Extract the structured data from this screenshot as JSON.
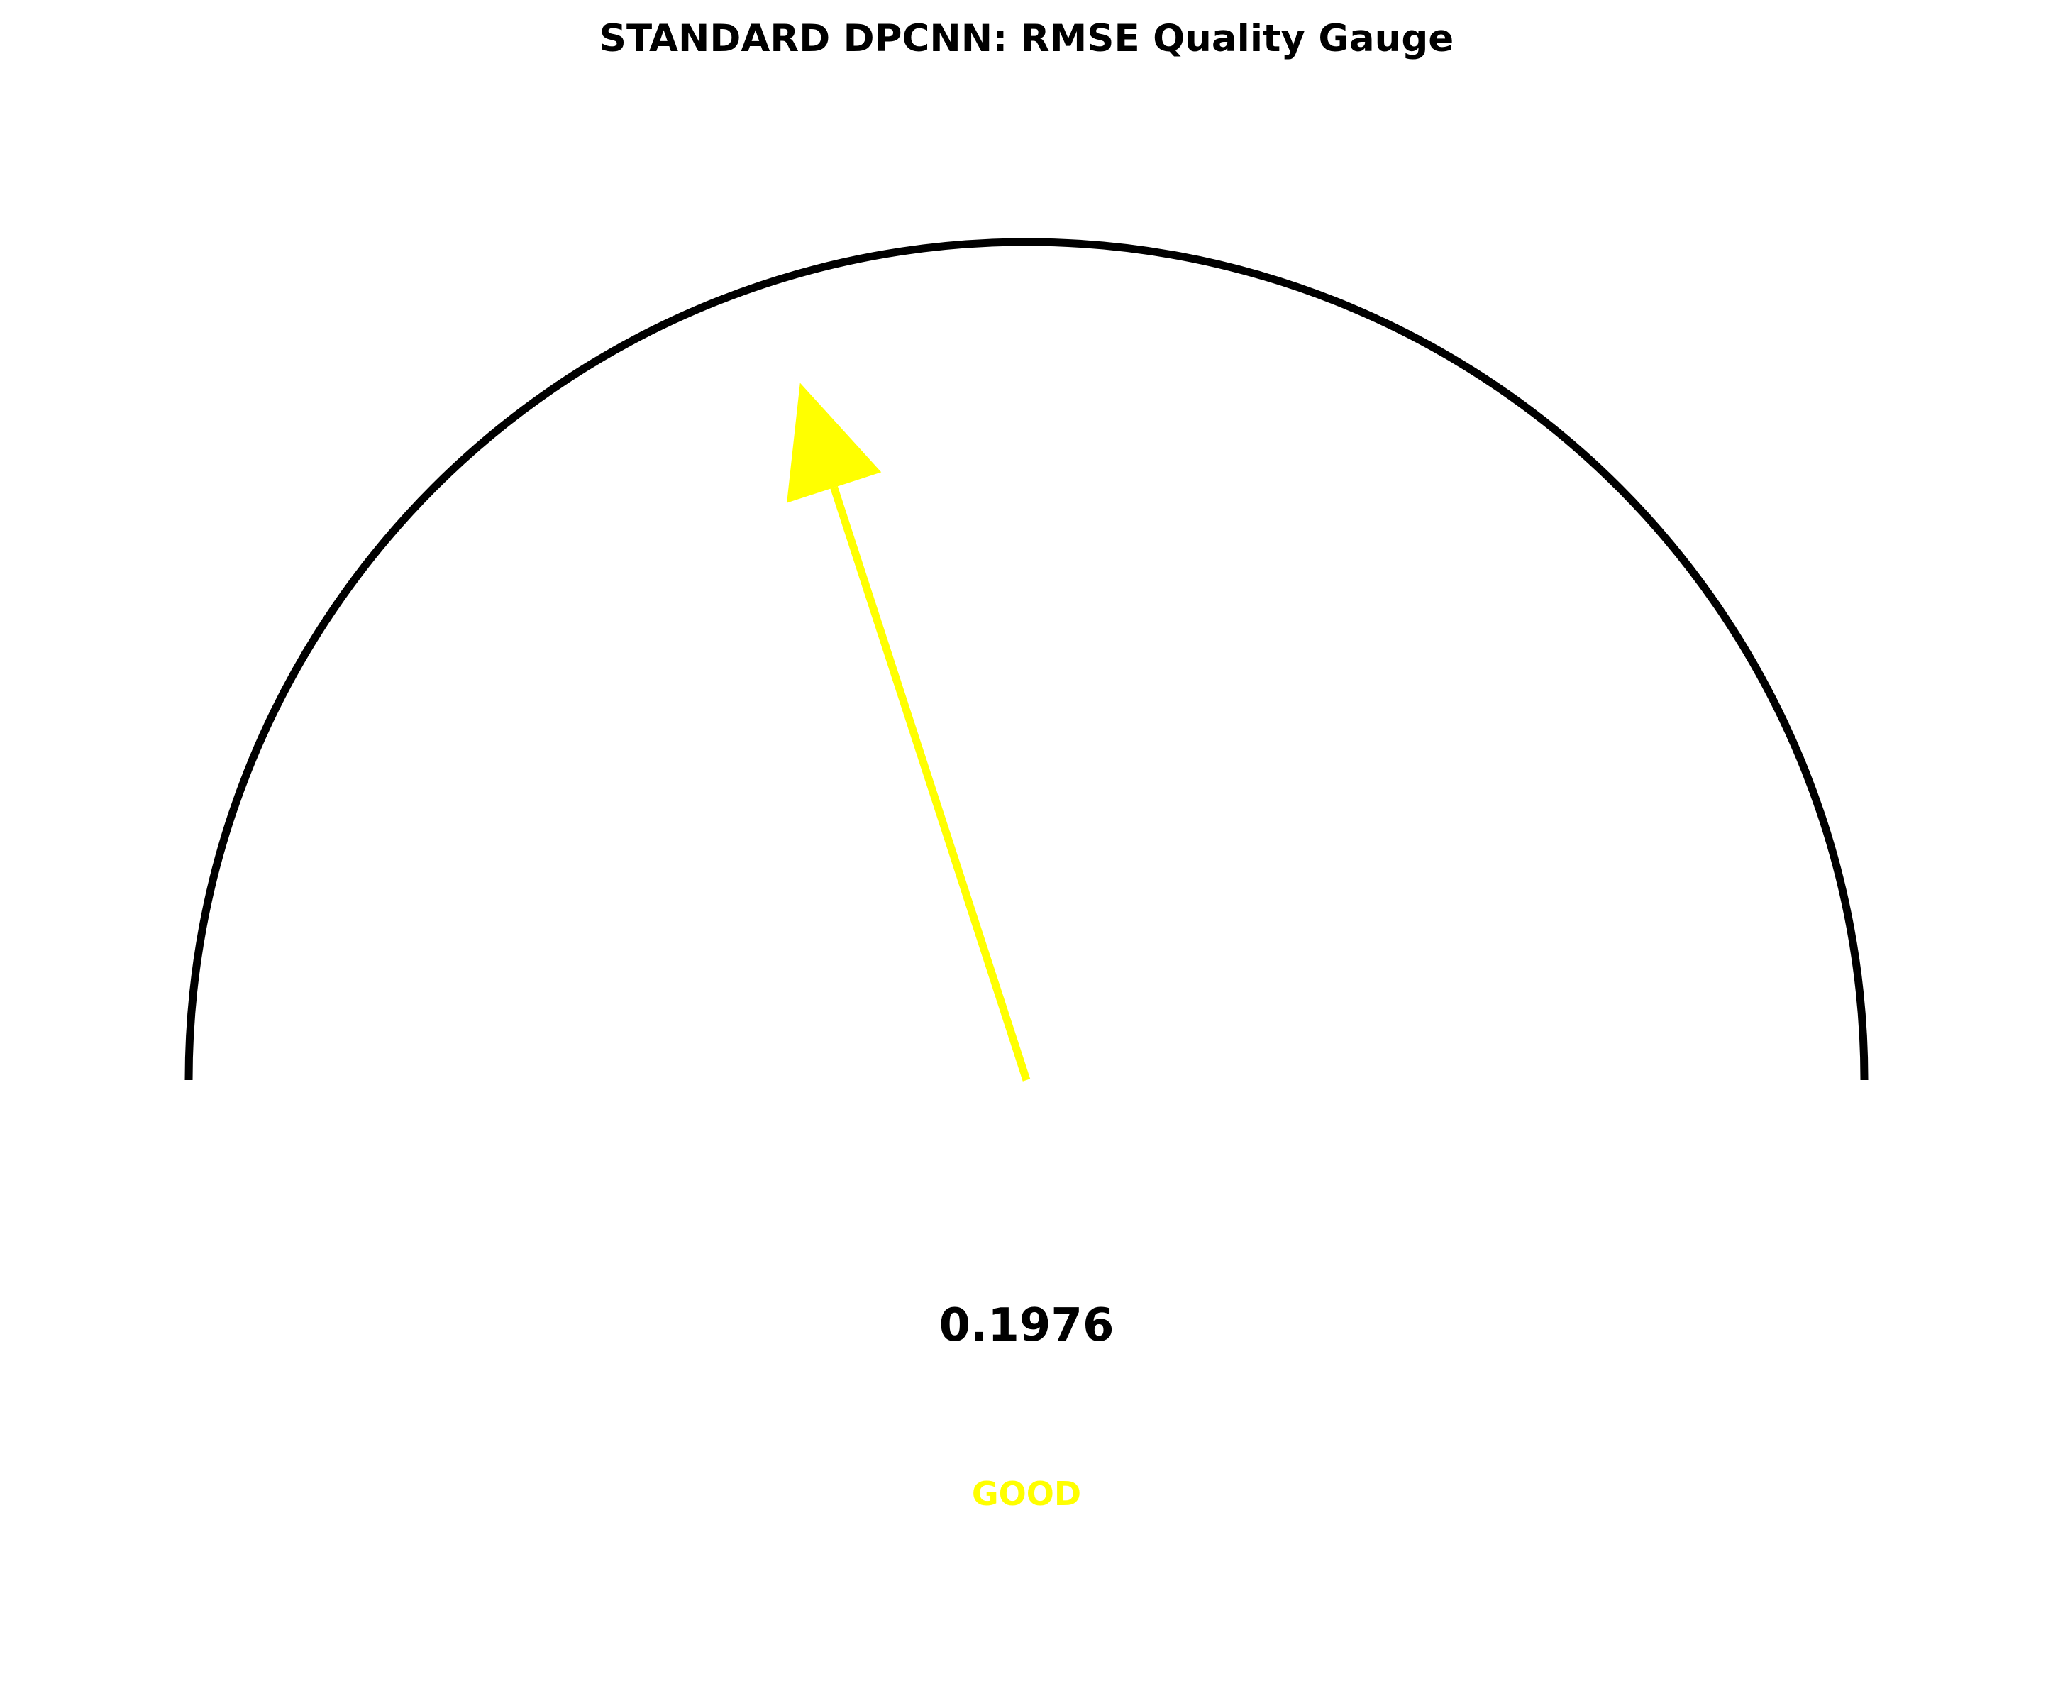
{
  "chart_data": {
    "type": "gauge",
    "title": "STANDARD DPCNN: RMSE Quality Gauge",
    "value": 0.1976,
    "value_label": "0.1976",
    "status_label": "GOOD",
    "needle_fraction": 0.4,
    "colors": {
      "arc": "#000000",
      "needle": "#ffff00",
      "status": "#ffff00",
      "text": "#000000"
    }
  }
}
